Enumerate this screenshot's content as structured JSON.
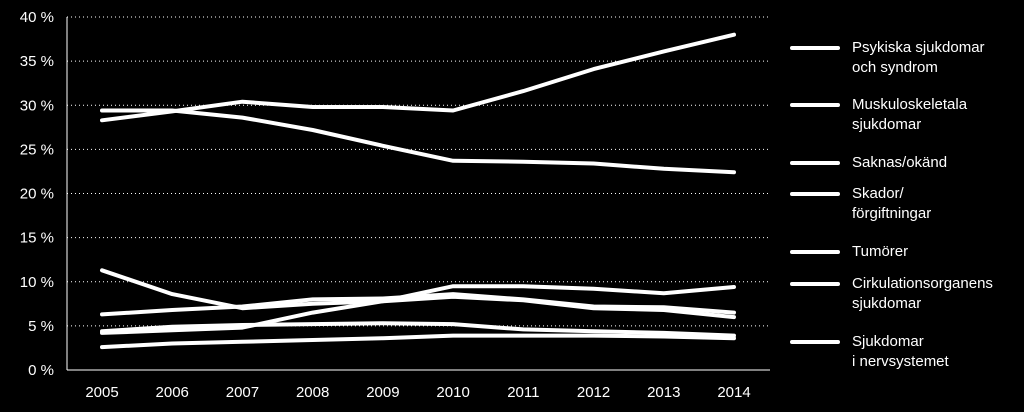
{
  "chart_data": {
    "type": "line",
    "x": [
      "2005",
      "2006",
      "2007",
      "2008",
      "2009",
      "2010",
      "2011",
      "2012",
      "2013",
      "2014"
    ],
    "ylim": [
      0,
      40
    ],
    "yticks": [
      0,
      5,
      10,
      15,
      20,
      25,
      30,
      35,
      40
    ],
    "ytick_labels": [
      "0 %",
      "5 %",
      "10 %",
      "15 %",
      "20 %",
      "25 %",
      "30 %",
      "35 %",
      "40 %"
    ],
    "grid": "horizontal dotted",
    "legend_position": "right",
    "series": [
      {
        "name": "Psykiska sjukdomar och syndrom",
        "label_lines": [
          "Psykiska sjukdomar",
          "och syndrom"
        ],
        "color": "#ffffff",
        "values": [
          28.3,
          29.3,
          30.4,
          29.8,
          29.8,
          29.4,
          31.6,
          34.1,
          36.1,
          38.0
        ]
      },
      {
        "name": "Muskuloskeletala sjukdomar",
        "label_lines": [
          "Muskuloskeletala",
          "sjukdomar"
        ],
        "color": "#ffffff",
        "values": [
          29.4,
          29.4,
          28.6,
          27.2,
          25.4,
          23.7,
          23.6,
          23.4,
          22.8,
          22.4
        ]
      },
      {
        "name": "Saknas/okänd",
        "label_lines": [
          "Saknas/okänd"
        ],
        "color": "#ffffff",
        "values": [
          11.3,
          8.6,
          7.0,
          7.5,
          7.8,
          9.5,
          9.5,
          9.2,
          8.7,
          9.4
        ]
      },
      {
        "name": "Skador/förgiftningar",
        "label_lines": [
          "Skador/",
          "förgiftningar"
        ],
        "color": "#ffffff",
        "values": [
          6.3,
          6.8,
          7.2,
          8.0,
          8.1,
          8.6,
          8.0,
          7.2,
          7.1,
          6.5
        ]
      },
      {
        "name": "Tumörer",
        "label_lines": [
          "Tumörer"
        ],
        "color": "#ffffff",
        "values": [
          4.4,
          4.9,
          5.1,
          5.2,
          5.3,
          5.2,
          4.6,
          4.4,
          4.2,
          3.9
        ]
      },
      {
        "name": "Cirkulationsorganens sjukdomar",
        "label_lines": [
          "Cirkulationsorganens",
          "sjukdomar"
        ],
        "color": "#ffffff",
        "values": [
          4.2,
          4.5,
          4.8,
          6.5,
          7.8,
          8.3,
          7.9,
          7.0,
          6.8,
          6.0
        ]
      },
      {
        "name": "Sjukdomar i nervsystemet",
        "label_lines": [
          "Sjukdomar",
          "i nervsystemet"
        ],
        "color": "#ffffff",
        "values": [
          2.6,
          3.0,
          3.2,
          3.4,
          3.6,
          3.9,
          3.9,
          3.9,
          3.8,
          3.6
        ]
      }
    ]
  }
}
